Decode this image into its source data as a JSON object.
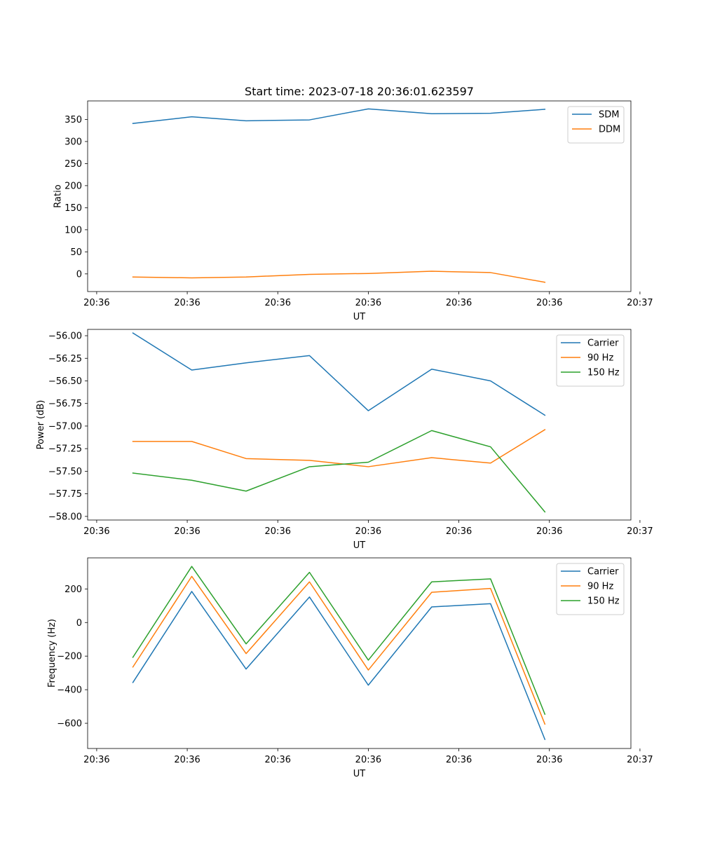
{
  "title": "Start time: 2023-07-18 20:36:01.623597",
  "chart_data": [
    {
      "type": "line",
      "title": "Start time: 2023-07-18 20:36:01.623597",
      "xlabel": "UT",
      "ylabel": "Ratio",
      "x": [
        1.0,
        1.65,
        2.25,
        2.95,
        3.6,
        4.3,
        4.95,
        5.55
      ],
      "xlim": [
        0.5,
        6.5
      ],
      "xticks": [
        0.6,
        1.6,
        2.6,
        3.6,
        4.6,
        5.6,
        6.6
      ],
      "xtick_labels": [
        "20:36",
        "20:36",
        "20:36",
        "20:36",
        "20:36",
        "20:36",
        "20:37"
      ],
      "ylim": [
        -40,
        392
      ],
      "yticks": [
        0,
        50,
        100,
        150,
        200,
        250,
        300,
        350
      ],
      "ytick_labels": [
        "0",
        "50",
        "100",
        "150",
        "200",
        "250",
        "300",
        "350"
      ],
      "legend": "top-right",
      "series": [
        {
          "name": "SDM",
          "color": "#1f77b4",
          "values": [
            341,
            356,
            347,
            349,
            374,
            363,
            364,
            373
          ]
        },
        {
          "name": "DDM",
          "color": "#ff7f0e",
          "values": [
            -7,
            -9,
            -7,
            -1,
            1,
            6,
            3,
            -19
          ]
        }
      ]
    },
    {
      "type": "line",
      "xlabel": "UT",
      "ylabel": "Power (dB)",
      "x": [
        1.0,
        1.65,
        2.25,
        2.95,
        3.6,
        4.3,
        4.95,
        5.55
      ],
      "xlim": [
        0.5,
        6.5
      ],
      "xticks": [
        0.6,
        1.6,
        2.6,
        3.6,
        4.6,
        5.6,
        6.6
      ],
      "xtick_labels": [
        "20:36",
        "20:36",
        "20:36",
        "20:36",
        "20:36",
        "20:36",
        "20:37"
      ],
      "ylim": [
        -58.04,
        -55.93
      ],
      "yticks": [
        -58.0,
        -57.75,
        -57.5,
        -57.25,
        -57.0,
        -56.75,
        -56.5,
        -56.25,
        -56.0
      ],
      "ytick_labels": [
        "−58.00",
        "−57.75",
        "−57.50",
        "−57.25",
        "−57.00",
        "−56.75",
        "−56.50",
        "−56.25",
        "−56.00"
      ],
      "legend": "top-right",
      "series": [
        {
          "name": "Carrier",
          "color": "#1f77b4",
          "values": [
            -55.97,
            -56.38,
            -56.3,
            -56.22,
            -56.83,
            -56.37,
            -56.5,
            -56.88
          ]
        },
        {
          "name": "90 Hz",
          "color": "#ff7f0e",
          "values": [
            -57.17,
            -57.17,
            -57.36,
            -57.38,
            -57.45,
            -57.35,
            -57.41,
            -57.04
          ]
        },
        {
          "name": "150 Hz",
          "color": "#2ca02c",
          "values": [
            -57.52,
            -57.6,
            -57.72,
            -57.45,
            -57.4,
            -57.05,
            -57.23,
            -57.95
          ]
        }
      ]
    },
    {
      "type": "line",
      "xlabel": "UT",
      "ylabel": "Frequency (Hz)",
      "x": [
        1.0,
        1.65,
        2.25,
        2.95,
        3.6,
        4.3,
        4.95,
        5.55
      ],
      "xlim": [
        0.5,
        6.5
      ],
      "xticks": [
        0.6,
        1.6,
        2.6,
        3.6,
        4.6,
        5.6,
        6.6
      ],
      "xtick_labels": [
        "20:36",
        "20:36",
        "20:36",
        "20:36",
        "20:36",
        "20:36",
        "20:37"
      ],
      "ylim": [
        -750,
        385
      ],
      "yticks": [
        -600,
        -400,
        -200,
        0,
        200
      ],
      "ytick_labels": [
        "−600",
        "−400",
        "−200",
        "0",
        "200"
      ],
      "legend": "top-right",
      "series": [
        {
          "name": "Carrier",
          "color": "#1f77b4",
          "values": [
            -357,
            185,
            -277,
            152,
            -373,
            93,
            112,
            -696
          ]
        },
        {
          "name": "90 Hz",
          "color": "#ff7f0e",
          "values": [
            -265,
            275,
            -185,
            242,
            -283,
            180,
            203,
            -605
          ]
        },
        {
          "name": "150 Hz",
          "color": "#2ca02c",
          "values": [
            -207,
            334,
            -127,
            299,
            -224,
            242,
            260,
            -546
          ]
        }
      ]
    }
  ]
}
